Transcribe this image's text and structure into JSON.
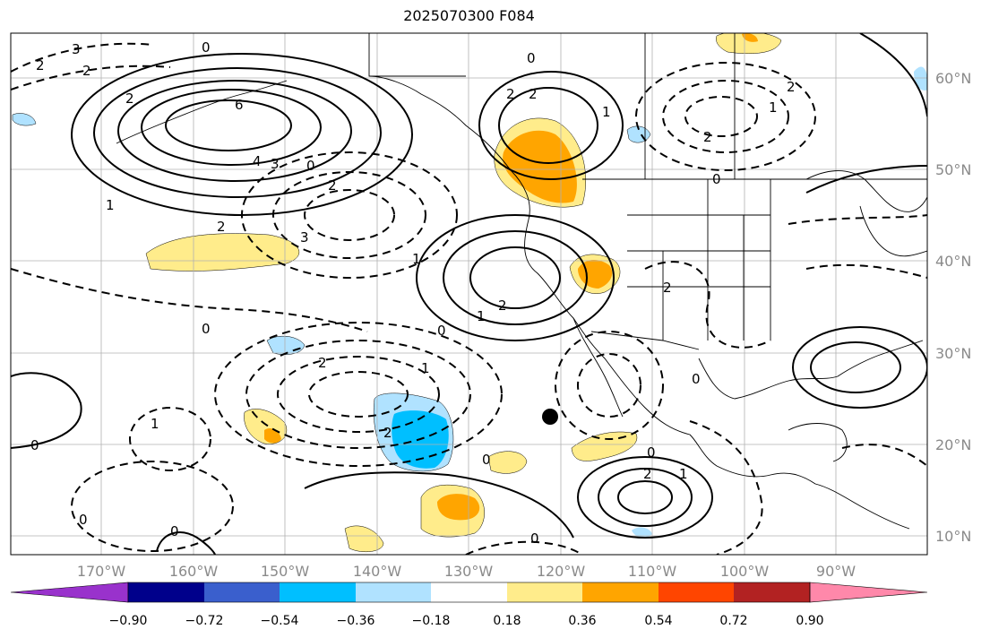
{
  "title": "2025070300 F084",
  "map": {
    "lon_labels": [
      "170°W",
      "160°W",
      "150°W",
      "140°W",
      "130°W",
      "120°W",
      "110°W",
      "100°W",
      "90°W"
    ],
    "lat_labels": [
      "60°N",
      "50°N",
      "40°N",
      "30°N",
      "20°N",
      "10°N"
    ],
    "contour_labels": [
      "3",
      "2",
      "2",
      "2",
      "0",
      "6",
      "4",
      "3",
      "0",
      "2",
      "1",
      "2",
      "3",
      "2",
      "2",
      "0",
      "1",
      "2",
      "1",
      "0",
      "2",
      "1",
      "0",
      "2",
      "1",
      "0",
      "2",
      "2",
      "0",
      "2",
      "1",
      "0",
      "1",
      "0",
      "0",
      "0",
      "2",
      "1",
      "0",
      "0"
    ],
    "marker": "black-dot"
  },
  "colorbar": {
    "ticks": [
      "−0.90",
      "−0.72",
      "−0.54",
      "−0.36",
      "−0.18",
      "0.18",
      "0.36",
      "0.54",
      "0.72",
      "0.90"
    ],
    "colors": [
      "#9932cc",
      "#00008b",
      "#3a5fcd",
      "#00bfff",
      "#b0e2ff",
      "#ffffff",
      "#ffec8b",
      "#ffa500",
      "#ff4500",
      "#b22222",
      "#ff88aa"
    ],
    "extend": "both"
  }
}
